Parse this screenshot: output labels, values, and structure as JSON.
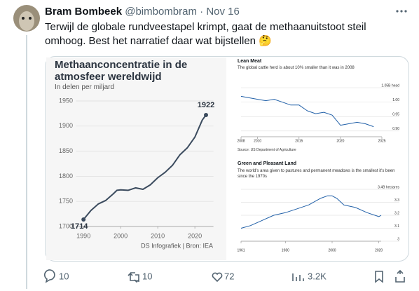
{
  "tweet": {
    "author_name": "Bram Bombeek",
    "handle": "@bimbombram",
    "separator": "·",
    "time": "Nov 16",
    "text": "Terwijl de globale rundveestapel krimpt, gaat de methaanuitstoot steil omhoog. Best het narratief daar wat bijstellen 🤔"
  },
  "chart_data": [
    {
      "type": "line",
      "title": "Methaanconcentratie in de atmosfeer wereldwijd",
      "subtitle": "In delen per miljard",
      "source": "DS Infografiek | Bron: IEA",
      "x": [
        1990,
        1992,
        1994,
        1996,
        1998,
        1999,
        2000,
        2002,
        2004,
        2006,
        2008,
        2010,
        2012,
        2014,
        2016,
        2018,
        2020,
        2022,
        2023
      ],
      "values": [
        1714,
        1732,
        1745,
        1752,
        1765,
        1772,
        1773,
        1772,
        1777,
        1774,
        1783,
        1797,
        1808,
        1822,
        1843,
        1857,
        1878,
        1912,
        1922
      ],
      "color": "#3b4b5e",
      "xlim": [
        1988,
        2025
      ],
      "xticks": [
        1990,
        2000,
        2010,
        2020
      ],
      "ylim": [
        1700,
        1950
      ],
      "yticks": [
        1700,
        1750,
        1800,
        1850,
        1900,
        1950
      ],
      "grid": true
    },
    {
      "type": "line",
      "title": "Lean Meat",
      "subtitle": "The global cattle herd is about 10% smaller than it was in 2008",
      "source": "Source: US Department of Agriculture",
      "x": [
        2008,
        2009,
        2010,
        2011,
        2012,
        2013,
        2014,
        2015,
        2016,
        2017,
        2018,
        2019,
        2020,
        2021,
        2022,
        2023,
        2024
      ],
      "values": [
        1.02,
        1.015,
        1.01,
        1.005,
        1.01,
        1.0,
        0.99,
        0.99,
        0.97,
        0.96,
        0.965,
        0.955,
        0.92,
        0.925,
        0.93,
        0.925,
        0.915
      ],
      "color": "#2160a8",
      "xlim": [
        2008,
        2025
      ],
      "xticks": [
        2008,
        2010,
        2015,
        2020,
        2025
      ],
      "ylim": [
        0.88,
        1.06
      ],
      "yticks": [
        {
          "value": 0.9,
          "label": "0.90"
        },
        0.95,
        {
          "value": 1,
          "label": "1.00"
        },
        {
          "value": 1.05,
          "label": "1.05B head"
        }
      ],
      "grid": true
    },
    {
      "type": "line",
      "title": "Green and Pleasant Land",
      "subtitle": "The world's area given to pastures and permanent meadows is the smallest it's been since the 1970s",
      "x": [
        1961,
        1965,
        1970,
        1975,
        1980,
        1985,
        1990,
        1995,
        1998,
        2000,
        2002,
        2005,
        2010,
        2015,
        2020,
        2021
      ],
      "values": [
        3.1,
        3.12,
        3.16,
        3.2,
        3.22,
        3.25,
        3.28,
        3.33,
        3.35,
        3.35,
        3.33,
        3.28,
        3.26,
        3.22,
        3.19,
        3.2
      ],
      "color": "#2160a8",
      "xlim": [
        1961,
        2021
      ],
      "xticks": [
        1961,
        1980,
        2000,
        2020
      ],
      "ylim": [
        3.0,
        3.4
      ],
      "yticks": [
        3.0,
        3.1,
        3.2,
        3.3,
        {
          "value": 3.4,
          "label": "3.4B hectares"
        }
      ],
      "grid": true
    }
  ],
  "actions": {
    "replies": "10",
    "reposts": "10",
    "likes": "72",
    "views": "3.2K"
  }
}
